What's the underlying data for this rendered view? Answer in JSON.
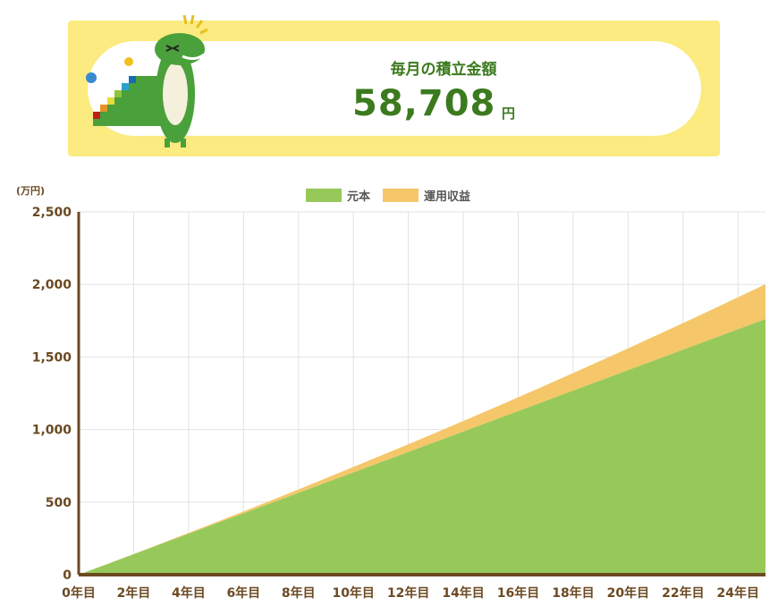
{
  "header": {
    "title": "毎月の積立金額",
    "amount": "58,708",
    "unit": "円"
  },
  "colors": {
    "principal": "#97c95a",
    "profit": "#f5c76a",
    "axis": "#6b4a22",
    "banner": "#fbeb80",
    "text": "#3c7a1e"
  },
  "chart_data": {
    "type": "area",
    "stacked": true,
    "unit_label": "(万円)",
    "x": [
      0,
      1,
      2,
      3,
      4,
      5,
      6,
      7,
      8,
      9,
      10,
      11,
      12,
      13,
      14,
      15,
      16,
      17,
      18,
      19,
      20,
      21,
      22,
      23,
      24,
      25
    ],
    "x_tick_labels": [
      "0年目",
      "2年目",
      "4年目",
      "6年目",
      "8年目",
      "10年目",
      "12年目",
      "14年目",
      "16年目",
      "18年目",
      "20年目",
      "22年目",
      "24年目"
    ],
    "y_tick_labels": [
      "0",
      "500",
      "1,000",
      "1,500",
      "2,000",
      "2,500"
    ],
    "ylim": [
      0,
      2500
    ],
    "xlim": [
      0,
      25
    ],
    "grid": true,
    "legend_position": "top",
    "series": [
      {
        "name": "元本",
        "values": [
          0,
          70.4,
          140.9,
          211.4,
          281.8,
          352.3,
          422.7,
          493.2,
          563.6,
          634.1,
          704.5,
          775.0,
          845.4,
          915.9,
          986.3,
          1056.7,
          1127.2,
          1197.6,
          1268.1,
          1338.6,
          1409.0,
          1479.5,
          1549.9,
          1620.3,
          1690.8,
          1761.2
        ]
      },
      {
        "name": "運用収益",
        "values": [
          0,
          0.4,
          1.4,
          3.2,
          5.7,
          8.9,
          13.1,
          18.0,
          23.7,
          30.3,
          37.8,
          45.4,
          52.9,
          62.3,
          72.5,
          83.4,
          95.1,
          107.8,
          121.3,
          135.6,
          150.8,
          166.9,
          183.7,
          201.4,
          220.1,
          239.7
        ]
      }
    ]
  }
}
